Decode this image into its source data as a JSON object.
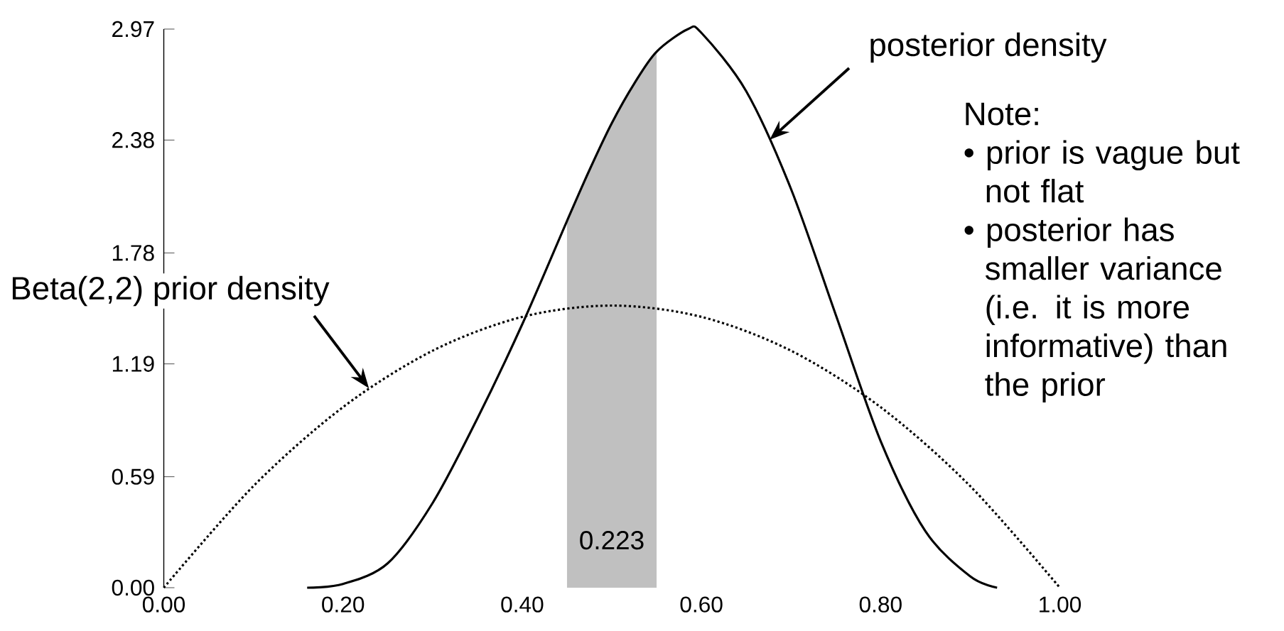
{
  "chart_data": {
    "type": "line",
    "series": [
      {
        "color": "#000000",
        "line_style": "solid",
        "x": [
          0.16,
          0.2,
          0.25,
          0.3,
          0.35,
          0.4,
          0.45,
          0.475,
          0.5,
          0.525,
          0.55,
          0.585,
          0.6,
          0.65,
          0.7,
          0.75,
          0.8,
          0.85,
          0.9,
          0.93
        ],
        "values": [
          0,
          0.02,
          0.13,
          0.45,
          0.9,
          1.4,
          1.95,
          2.22,
          2.47,
          2.68,
          2.85,
          2.97,
          2.95,
          2.64,
          2.12,
          1.45,
          0.78,
          0.3,
          0.06,
          0
        ]
      },
      {
        "color": "#000000",
        "line_style": "dotted",
        "x": [
          0,
          0.1,
          0.2,
          0.3,
          0.4,
          0.5,
          0.6,
          0.7,
          0.8,
          0.9,
          1.0
        ],
        "values": [
          0,
          0.54,
          0.96,
          1.26,
          1.44,
          1.5,
          1.44,
          1.26,
          0.96,
          0.54,
          0
        ]
      },
      {
        "type": "area",
        "color": "#c0c0c0",
        "x": [
          0.45,
          0.475,
          0.5,
          0.525,
          0.55
        ],
        "values": [
          1.95,
          2.22,
          2.47,
          2.68,
          2.85
        ]
      }
    ],
    "xlim": [
      0,
      1
    ],
    "ylim": [
      0,
      2.97
    ],
    "xticks": [
      {
        "value": 0,
        "label": "0.00"
      },
      {
        "value": 0.2,
        "label": "0.20"
      },
      {
        "value": 0.4,
        "label": "0.40"
      },
      {
        "value": 0.6,
        "label": "0.60"
      },
      {
        "value": 0.8,
        "label": "0.80"
      },
      {
        "value": 1,
        "label": "1.00"
      }
    ],
    "yticks": [
      {
        "value": 0,
        "label": "0.00"
      },
      0.59,
      1.19,
      1.78,
      2.38,
      2.97
    ],
    "annotations": [
      "posterior density",
      {
        "text": "Beta(2,2) prior density",
        "x": 0.229,
        "y": 1.06
      },
      "Note:",
      "• prior is vague but not flat",
      "• posterior has smaller variance (i.e. it is more informative) than the prior",
      "0.223"
    ]
  }
}
